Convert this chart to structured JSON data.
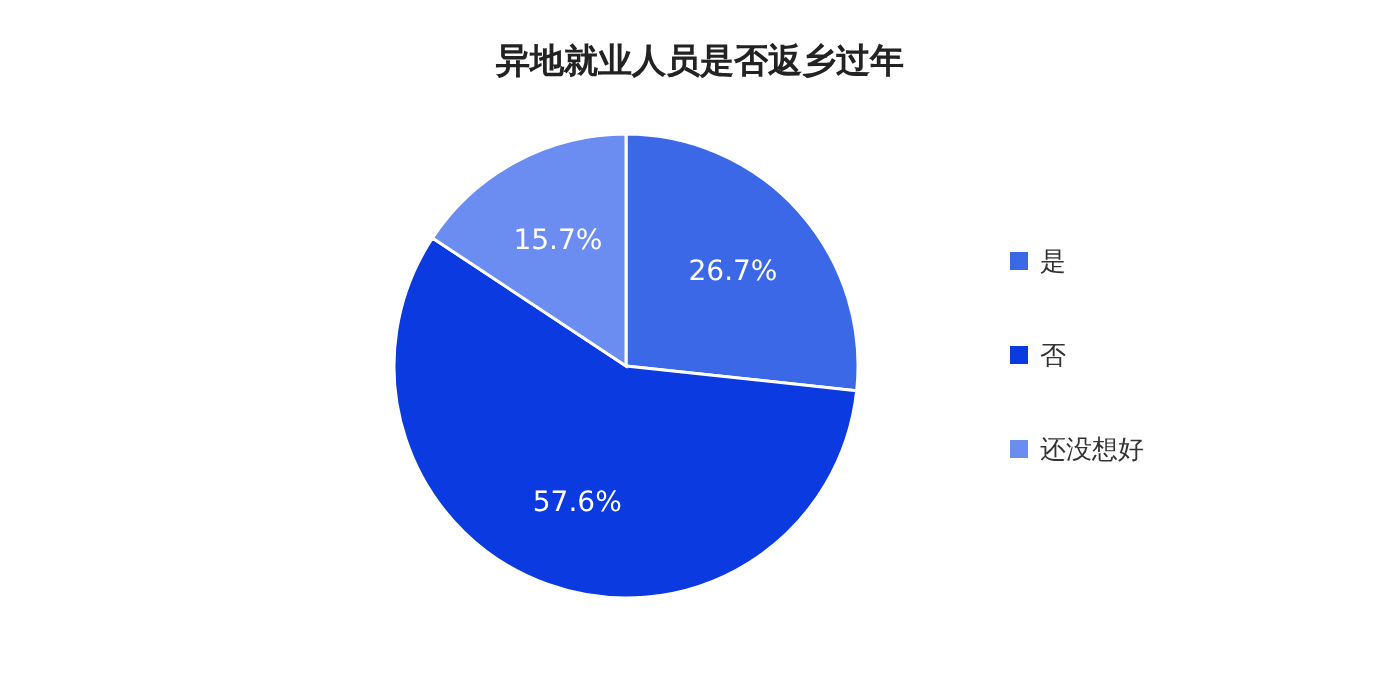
{
  "chart_data": {
    "type": "pie",
    "title": "异地就业人员是否返乡过年",
    "categories": [
      "是",
      "否",
      "还没想好"
    ],
    "values": [
      26.7,
      57.6,
      15.7
    ],
    "value_labels": [
      "26.7%",
      "57.6%",
      "15.7%"
    ],
    "colors": [
      "#3a68e6",
      "#0a3ae0",
      "#6b8cf0"
    ],
    "legend": "right"
  }
}
